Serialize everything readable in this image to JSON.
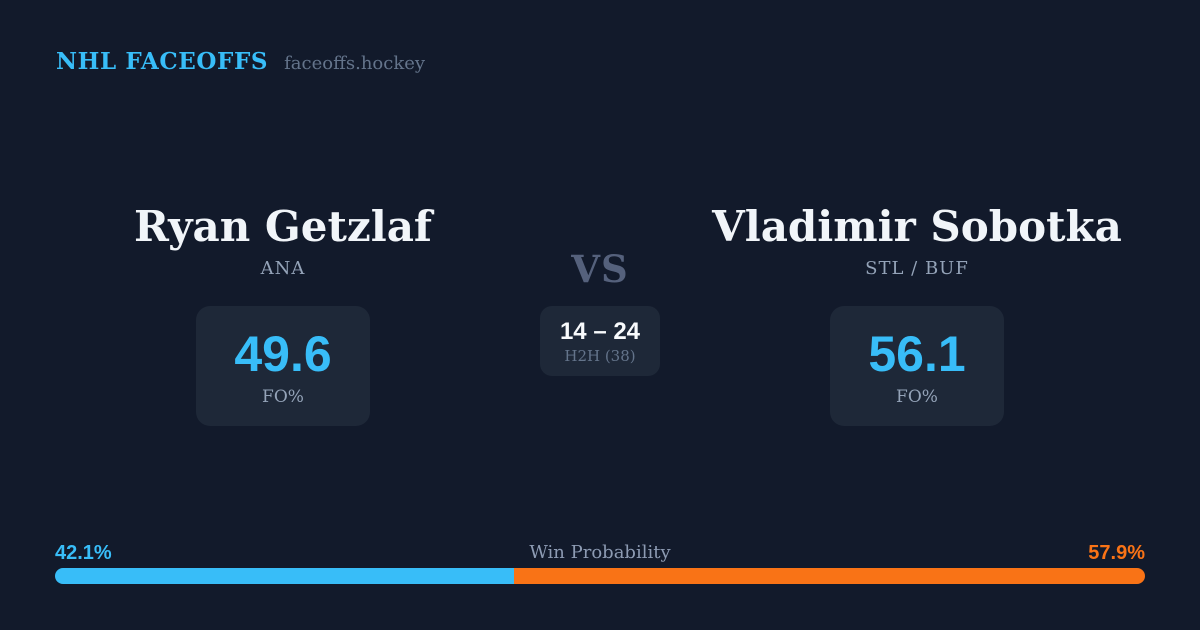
{
  "brand": {
    "title": "NHL FACEOFFS",
    "domain": "faceoffs.hockey"
  },
  "player_left": {
    "name": "Ryan Getzlaf",
    "team": "ANA",
    "stat_value": "49.6",
    "stat_label": "FO%"
  },
  "versus": {
    "label": "VS",
    "h2h_score": "14 – 24",
    "h2h_label": "H2H (38)"
  },
  "player_right": {
    "name": "Vladimir Sobotka",
    "team": "STL / BUF",
    "stat_value": "56.1",
    "stat_label": "FO%"
  },
  "win_probability": {
    "title": "Win Probability",
    "left_pct_label": "42.1%",
    "right_pct_label": "57.9%",
    "left_value": 42.1,
    "right_value": 57.9
  },
  "colors": {
    "background": "#121a2b",
    "card": "#1e2838",
    "accent_blue": "#38bdf8",
    "accent_orange": "#f97316",
    "text_primary": "#f1f5f9",
    "text_muted": "#94a3b8"
  }
}
